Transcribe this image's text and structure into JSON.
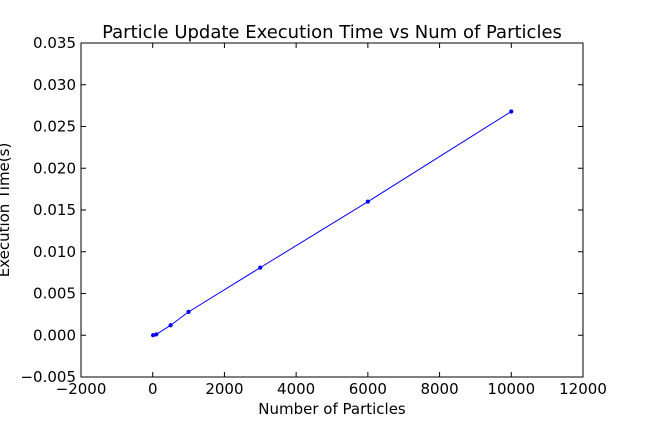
{
  "chart_data": {
    "type": "line",
    "title": "Particle Update Execution Time vs Num of Particles",
    "xlabel": "Number of Particles",
    "ylabel": "Execution Time(s)",
    "xlim": [
      -2000,
      12000
    ],
    "ylim": [
      -0.005,
      0.035
    ],
    "xticks": [
      -2000,
      0,
      2000,
      4000,
      6000,
      8000,
      10000,
      12000
    ],
    "xtick_labels": [
      "−2000",
      "0",
      "2000",
      "4000",
      "6000",
      "8000",
      "10000",
      "12000"
    ],
    "yticks": [
      -0.005,
      0,
      0.005,
      0.01,
      0.015,
      0.02,
      0.025,
      0.03,
      0.035
    ],
    "ytick_labels": [
      "−0.005",
      "0.000",
      "0.005",
      "0.010",
      "0.015",
      "0.020",
      "0.025",
      "0.030",
      "0.035"
    ],
    "grid": false,
    "series": [
      {
        "color": "#0000ff",
        "x": [
          10,
          100,
          500,
          1000,
          3000,
          6000,
          10000
        ],
        "y": [
          0.0,
          0.0001,
          0.0012,
          0.0028,
          0.0081,
          0.016,
          0.0268
        ]
      }
    ]
  }
}
